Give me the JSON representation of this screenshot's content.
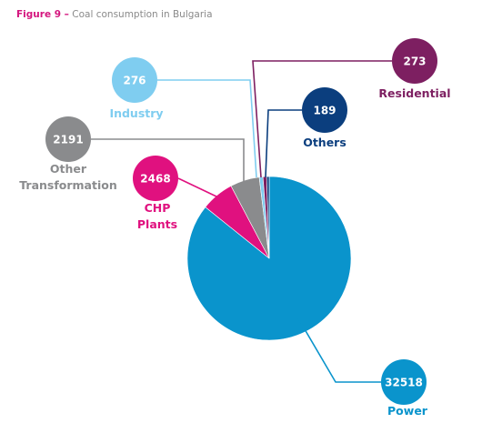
{
  "figure": {
    "number": "Figure 9 –",
    "title": "Coal consumption in Bulgaria",
    "accent_color": "#d4157e"
  },
  "chart_data": {
    "type": "pie",
    "title": "Coal consumption in Bulgaria",
    "start_angle_deg": 0,
    "direction": "clockwise",
    "slices": [
      {
        "label": "Power",
        "value": 32518,
        "value_label": "32518",
        "color": "#0a94cc",
        "label_color": "#0a94cc"
      },
      {
        "label": "CHP Plants",
        "value": 2468,
        "value_label": "2468",
        "color": "#e0117f",
        "label_color": "#e0117f"
      },
      {
        "label": "Other Transformation",
        "value": 2191,
        "value_label": "2191",
        "color": "#8a8b8d",
        "label_color": "#8a8b8d"
      },
      {
        "label": "Industry",
        "value": 276,
        "value_label": "276",
        "color": "#7fcdf0",
        "label_color": "#7fcdf0"
      },
      {
        "label": "Residential",
        "value": 273,
        "value_label": "273",
        "color": "#7d1f61",
        "label_color": "#7d1f61"
      },
      {
        "label": "Others",
        "value": 189,
        "value_label": "189",
        "color": "#0b3e7e",
        "label_color": "#0b3e7e"
      }
    ]
  }
}
